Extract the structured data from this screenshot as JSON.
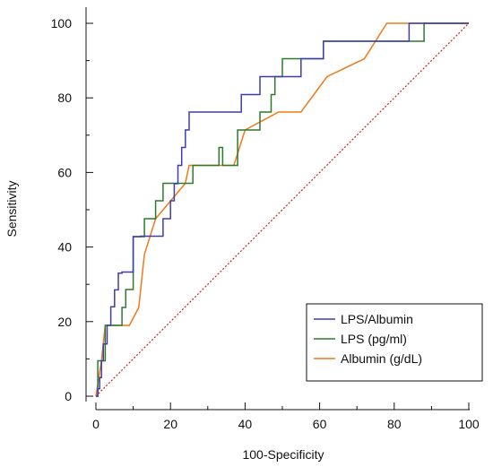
{
  "chart_data": {
    "type": "line",
    "title": "",
    "xlabel": "100-Specificity",
    "ylabel": "Sensitivity",
    "xlim": [
      0,
      100
    ],
    "ylim": [
      0,
      100
    ],
    "xticks": [
      0,
      20,
      40,
      60,
      80,
      100
    ],
    "yticks": [
      0,
      20,
      40,
      60,
      80,
      100
    ],
    "x_tick_labels": [
      "0",
      "20",
      "40",
      "60",
      "80",
      "100"
    ],
    "y_tick_labels": [
      "0",
      "20",
      "40",
      "60",
      "80",
      "100"
    ],
    "grid": false,
    "legend_position": "bottom-right",
    "series": [
      {
        "name": "LPS/Albumin",
        "color": "#3d3db0",
        "step": true,
        "x": [
          0,
          0.5,
          0.5,
          1,
          1,
          1.5,
          1.5,
          2,
          2,
          3,
          3,
          4,
          4,
          5,
          5,
          6,
          6,
          7,
          7,
          10,
          10,
          12,
          12,
          15,
          15,
          17,
          17,
          18,
          18,
          19,
          19,
          20,
          20,
          21,
          21,
          22,
          22,
          23,
          23,
          24,
          24,
          25,
          25,
          39,
          39,
          44,
          44,
          46,
          46,
          51,
          51,
          55,
          55,
          59,
          59,
          61,
          61,
          84,
          84,
          100
        ],
        "y": [
          0,
          0,
          2,
          2,
          5,
          5,
          9.5,
          9.5,
          14,
          14,
          19,
          19,
          24,
          24,
          28.5,
          28.5,
          33,
          33,
          33.3,
          33.3,
          42.8,
          42.8,
          42.9,
          42.9,
          42.9,
          42.9,
          42.9,
          42.9,
          47.6,
          47.6,
          47.6,
          47.6,
          52.4,
          52.4,
          57,
          57,
          61.9,
          61.9,
          66.7,
          66.7,
          71.4,
          71.4,
          76.2,
          76.2,
          80.9,
          80.9,
          85.7,
          85.7,
          85.7,
          85.7,
          85.7,
          85.7,
          90.5,
          90.5,
          90.5,
          90.5,
          95.2,
          95.2,
          100,
          100
        ]
      },
      {
        "name": "LPS (pg/ml)",
        "color": "#2d7a2d",
        "step": true,
        "x": [
          0,
          0.5,
          0.5,
          2.5,
          2.5,
          5,
          5,
          7,
          7,
          8,
          8,
          10,
          10,
          13,
          13,
          16,
          16,
          18,
          18,
          19,
          19,
          26,
          26,
          31,
          31,
          33,
          33,
          34,
          34,
          38,
          38,
          40,
          40,
          44,
          44,
          45,
          45,
          47,
          47,
          48,
          48,
          50,
          50,
          61,
          61,
          62,
          62,
          88,
          88,
          100
        ],
        "y": [
          0,
          0,
          9.5,
          9.5,
          19,
          19,
          19,
          19,
          23.8,
          23.8,
          28.6,
          28.6,
          42.8,
          42.8,
          47.6,
          47.6,
          52.4,
          52.4,
          57.1,
          57.1,
          57.1,
          57.1,
          61.9,
          61.9,
          61.9,
          61.9,
          66.7,
          66.7,
          61.9,
          61.9,
          71.4,
          71.4,
          71.4,
          71.4,
          76.2,
          76.2,
          76.2,
          76.2,
          80.9,
          80.9,
          85.7,
          85.7,
          90.5,
          90.5,
          95.2,
          95.2,
          95.2,
          95.2,
          100,
          100
        ]
      },
      {
        "name": "Albumin (g/dL)",
        "color": "#f07a1a",
        "step": false,
        "x": [
          0,
          1.5,
          2.5,
          3,
          9,
          11.5,
          13,
          16,
          24,
          25,
          31,
          37,
          40,
          49,
          55,
          62,
          72,
          78,
          100
        ],
        "y": [
          0,
          9.5,
          19,
          19,
          19,
          23.8,
          38,
          47.6,
          57.1,
          61.9,
          61.9,
          61.9,
          71.4,
          76.2,
          76.2,
          85.7,
          90.5,
          100,
          100
        ]
      },
      {
        "name": "",
        "color": "#cc2222",
        "dashed": true,
        "x": [
          0,
          100
        ],
        "y": [
          0,
          100
        ]
      }
    ]
  }
}
